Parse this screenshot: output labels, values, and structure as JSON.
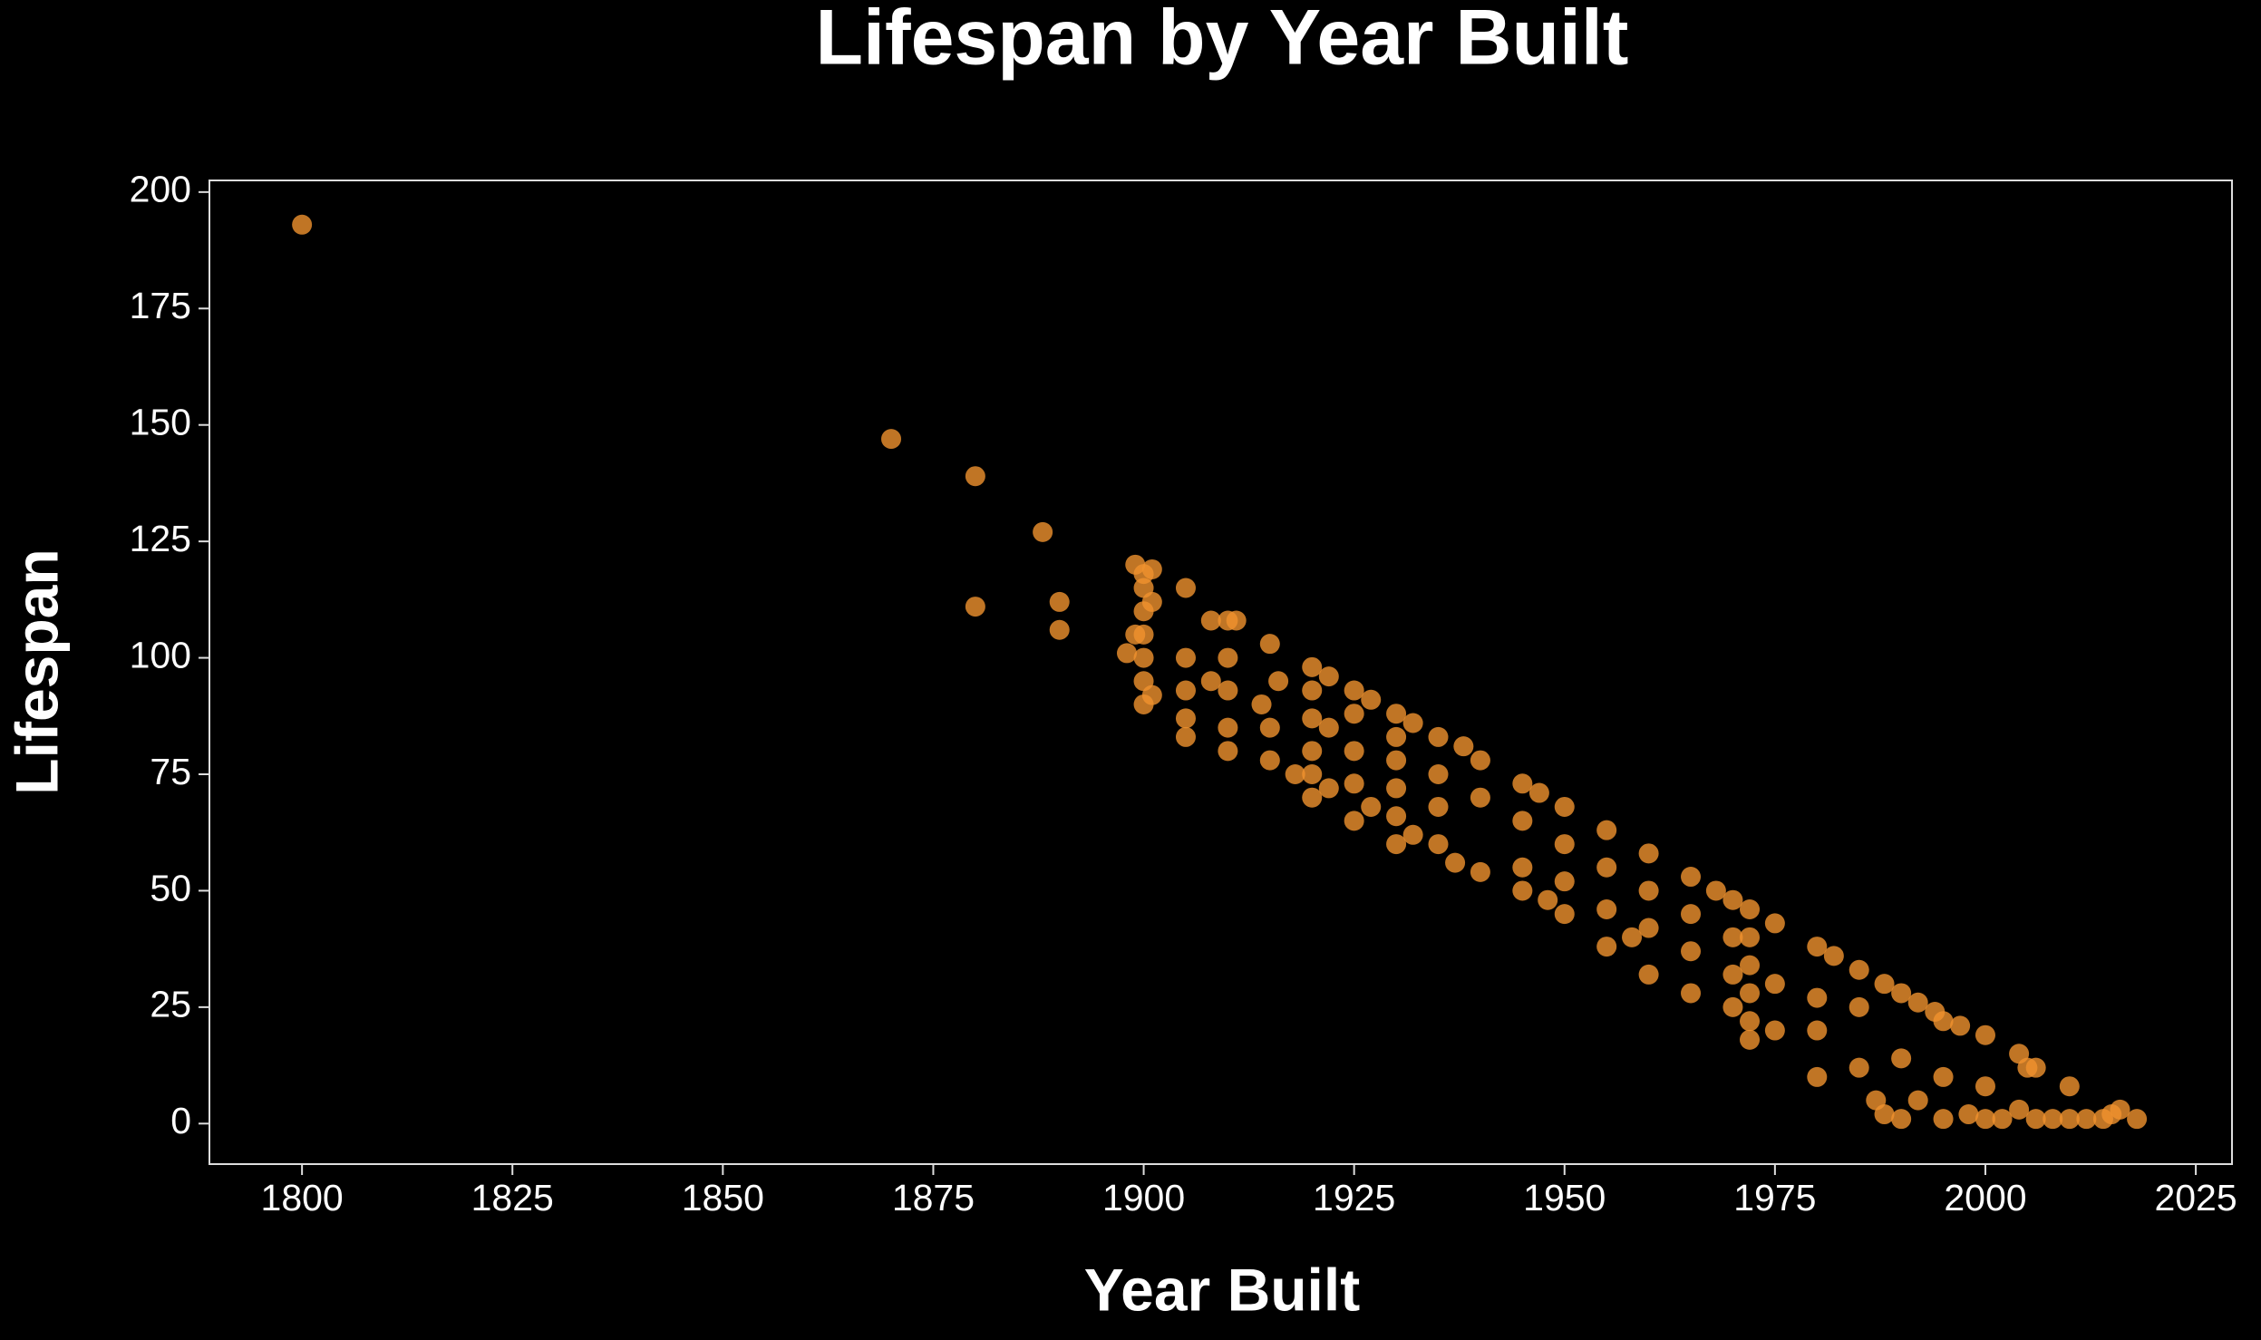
{
  "chart_data": {
    "type": "scatter",
    "title": "Lifespan by Year Built",
    "xlabel": "Year Built",
    "ylabel": "Lifespan",
    "color": "#f0922e",
    "x": [
      1800,
      1870,
      1880,
      1880,
      1888,
      1890,
      1890,
      1899,
      1900,
      1900,
      1900,
      1900,
      1900,
      1900,
      1900,
      1901,
      1901,
      1901,
      1898,
      1899,
      1905,
      1905,
      1905,
      1905,
      1905,
      1908,
      1908,
      1910,
      1910,
      1910,
      1910,
      1910,
      1911,
      1915,
      1914,
      1915,
      1915,
      1916,
      1918,
      1920,
      1920,
      1920,
      1920,
      1920,
      1920,
      1922,
      1922,
      1922,
      1925,
      1925,
      1925,
      1925,
      1925,
      1927,
      1927,
      1930,
      1930,
      1930,
      1930,
      1930,
      1930,
      1932,
      1932,
      1935,
      1935,
      1935,
      1935,
      1937,
      1938,
      1940,
      1940,
      1940,
      1945,
      1945,
      1945,
      1945,
      1947,
      1948,
      1950,
      1950,
      1950,
      1950,
      1955,
      1955,
      1955,
      1955,
      1958,
      1960,
      1960,
      1960,
      1960,
      1965,
      1965,
      1965,
      1965,
      1968,
      1970,
      1970,
      1970,
      1970,
      1972,
      1972,
      1972,
      1972,
      1972,
      1972,
      1975,
      1975,
      1975,
      1980,
      1980,
      1980,
      1980,
      1982,
      1985,
      1985,
      1985,
      1987,
      1988,
      1988,
      1990,
      1990,
      1990,
      1992,
      1992,
      1994,
      1995,
      1995,
      1995,
      1997,
      1998,
      2000,
      2000,
      2000,
      2002,
      2004,
      2004,
      2005,
      2006,
      2006,
      2008,
      2010,
      2010,
      2012,
      2014,
      2015,
      2016,
      2018
    ],
    "values": [
      193,
      147,
      139,
      111,
      127,
      112,
      106,
      120,
      118,
      115,
      110,
      105,
      100,
      95,
      90,
      119,
      112,
      92,
      101,
      105,
      115,
      100,
      93,
      87,
      83,
      108,
      95,
      108,
      100,
      93,
      85,
      80,
      108,
      103,
      90,
      85,
      78,
      95,
      75,
      98,
      93,
      87,
      80,
      75,
      70,
      96,
      85,
      72,
      93,
      88,
      80,
      73,
      65,
      91,
      68,
      88,
      83,
      78,
      72,
      66,
      60,
      86,
      62,
      83,
      75,
      68,
      60,
      56,
      81,
      78,
      70,
      54,
      73,
      65,
      55,
      50,
      71,
      48,
      68,
      60,
      52,
      45,
      63,
      55,
      46,
      38,
      40,
      58,
      50,
      42,
      32,
      53,
      45,
      37,
      28,
      50,
      48,
      40,
      32,
      25,
      46,
      40,
      34,
      28,
      22,
      18,
      43,
      30,
      20,
      38,
      27,
      20,
      10,
      36,
      33,
      25,
      12,
      5,
      30,
      2,
      28,
      14,
      1,
      26,
      5,
      24,
      22,
      10,
      1,
      21,
      2,
      19,
      8,
      1,
      1,
      15,
      3,
      12,
      12,
      1,
      1,
      8,
      1,
      1,
      1,
      2,
      3,
      1
    ],
    "xlim": [
      1789,
      2029.3
    ],
    "xticks": [
      1800,
      1825,
      1850,
      1875,
      1900,
      1925,
      1950,
      1975,
      2000,
      2025
    ],
    "ylim": [
      -8.7,
      202.5
    ],
    "yticks": [
      0,
      25,
      50,
      75,
      100,
      125,
      150,
      175,
      200
    ]
  }
}
